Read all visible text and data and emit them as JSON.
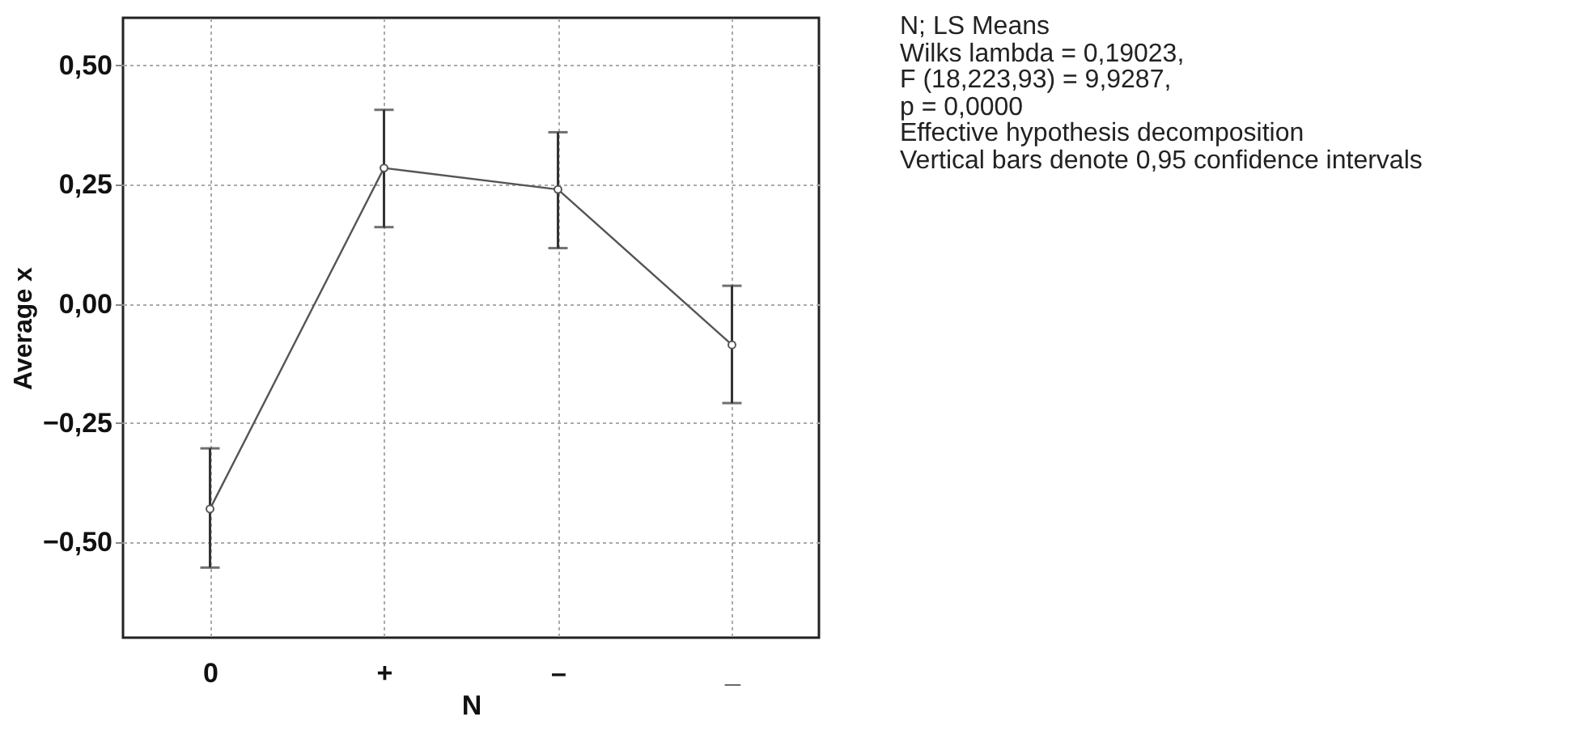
{
  "chart_data": {
    "type": "line",
    "xlabel": "N",
    "ylabel": "Average x",
    "categories": [
      "0",
      "+",
      "–",
      "_"
    ],
    "series": [
      {
        "color": "#555555",
        "values": [
          -0.43,
          0.285,
          0.24,
          -0.086
        ],
        "errors": [
          [
            -0.553,
            -0.303
          ],
          [
            0.161,
            0.407
          ],
          [
            0.117,
            0.36
          ],
          [
            -0.208,
            0.038
          ]
        ]
      }
    ],
    "ylim": [
      -0.7,
      0.6
    ],
    "yticks": [
      {
        "value": -0.5,
        "label": "−0,50"
      },
      {
        "value": -0.25,
        "label": "−0,25"
      },
      {
        "value": 0,
        "label": "0,00"
      },
      {
        "value": 0.25,
        "label": "0,25"
      },
      {
        "value": 0.5,
        "label": "0,50"
      }
    ],
    "grid": true,
    "marker": "circle",
    "line_style": "solid",
    "annotations": [
      "N; LS Means",
      "Wilks lambda = 0,19023,",
      "F (18,223,93) = 9,9287,",
      "p = 0,0000",
      "Effective hypothesis decomposition",
      "Vertical bars denote 0,95 confidence intervals"
    ]
  }
}
